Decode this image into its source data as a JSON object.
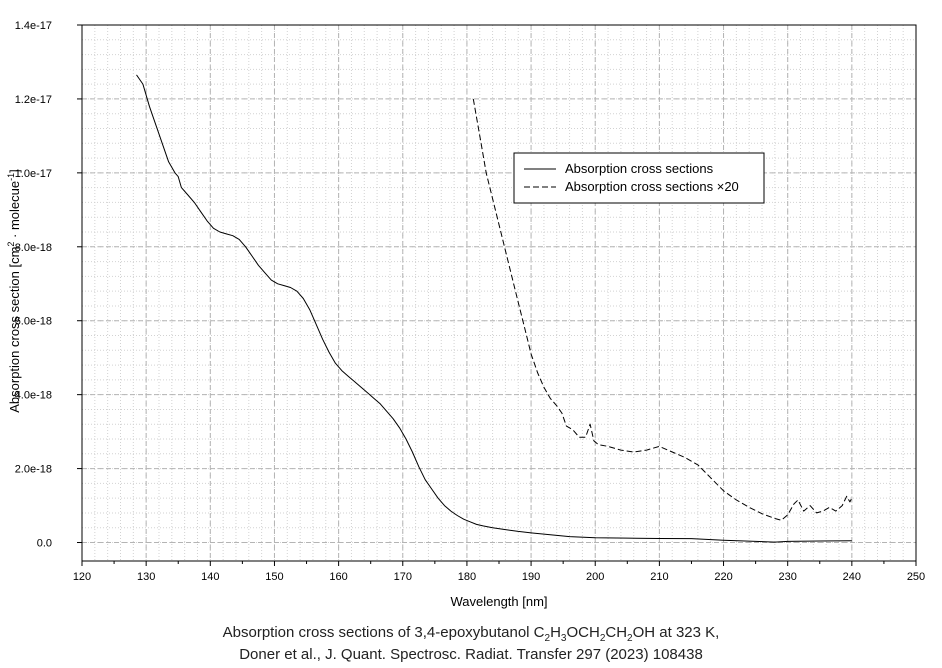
{
  "chart_data": {
    "type": "line",
    "xlabel": "Wavelength [nm]",
    "ylabel_main": "Absorption cross section [cm",
    "ylabel_sup1": "2",
    "ylabel_mid": " · molecue",
    "ylabel_sup2": "-1",
    "ylabel_end": "]",
    "xlim": [
      120,
      250
    ],
    "ylim": [
      -5e-19,
      1.4e-17
    ],
    "x_ticks": [
      120,
      130,
      140,
      150,
      160,
      170,
      180,
      190,
      200,
      210,
      220,
      230,
      240,
      250
    ],
    "y_ticks": [
      0,
      2e-18,
      4e-18,
      6e-18,
      8e-18,
      1e-17,
      1.2e-17,
      1.4e-17
    ],
    "y_tick_labels": [
      "0.0",
      "2.0e-18",
      "4.0e-18",
      "6.0e-18",
      "8.0e-18",
      "1.0e-17",
      "1.2e-17",
      "1.4e-17"
    ],
    "grid": true,
    "legend_position": "upper-right",
    "series": [
      {
        "name": "Absorption cross sections",
        "style": "solid",
        "x": [
          128.5,
          129.5,
          130.5,
          131.5,
          132.5,
          133.5,
          134.5,
          135.0,
          135.5,
          136.5,
          137.5,
          138.5,
          139.5,
          140.5,
          141.5,
          142.5,
          143.5,
          144.5,
          145.5,
          146.5,
          147.5,
          148.5,
          149.5,
          150.5,
          151.5,
          152.5,
          153.5,
          154.5,
          155.5,
          156.5,
          157.5,
          158.5,
          159.5,
          160.5,
          161.5,
          162.5,
          163.5,
          164.5,
          165.5,
          166.5,
          167.5,
          168.5,
          169.5,
          170.5,
          171.5,
          172.5,
          173.5,
          174.5,
          175.5,
          176.5,
          177.5,
          178.5,
          179.5,
          180.5,
          181.5,
          182.5,
          184,
          186,
          188,
          190,
          193,
          196,
          200,
          205,
          210,
          215,
          220,
          225,
          228,
          230,
          235,
          240
        ],
        "y": [
          1.265e-17,
          1.24e-17,
          1.18e-17,
          1.13e-17,
          1.08e-17,
          1.03e-17,
          1e-17,
          9.9e-18,
          9.6e-18,
          9.4e-18,
          9.2e-18,
          8.95e-18,
          8.7e-18,
          8.5e-18,
          8.4e-18,
          8.35e-18,
          8.3e-18,
          8.2e-18,
          8e-18,
          7.75e-18,
          7.5e-18,
          7.3e-18,
          7.1e-18,
          7e-18,
          6.95e-18,
          6.9e-18,
          6.8e-18,
          6.6e-18,
          6.3e-18,
          5.9e-18,
          5.5e-18,
          5.15e-18,
          4.85e-18,
          4.65e-18,
          4.5e-18,
          4.35e-18,
          4.2e-18,
          4.05e-18,
          3.9e-18,
          3.75e-18,
          3.55e-18,
          3.35e-18,
          3.1e-18,
          2.8e-18,
          2.45e-18,
          2.05e-18,
          1.7e-18,
          1.45e-18,
          1.2e-18,
          1e-18,
          8.5e-19,
          7.3e-19,
          6.3e-19,
          5.6e-19,
          4.9e-19,
          4.5e-19,
          4e-19,
          3.5e-19,
          3e-19,
          2.6e-19,
          2.1e-19,
          1.6e-19,
          1.3e-19,
          1.2e-19,
          1.1e-19,
          1.05e-19,
          6e-20,
          3e-20,
          1e-20,
          3e-20,
          4e-20,
          5e-20
        ]
      },
      {
        "name": "Absorption cross sections ×20",
        "style": "dashed",
        "x": [
          181.0,
          182.0,
          183.0,
          184.0,
          185.0,
          186.0,
          187.0,
          188.0,
          189.0,
          190.0,
          191.0,
          192.0,
          193.0,
          194.0,
          194.8,
          195.5,
          196.5,
          197.5,
          198.5,
          199.2,
          199.8,
          200.5,
          202,
          204,
          206,
          208,
          210,
          212,
          214,
          216,
          218,
          220,
          222,
          224,
          226,
          228,
          229,
          230,
          231,
          231.6,
          232.5,
          233.5,
          234.5,
          235.5,
          236.5,
          237.5,
          238.5,
          239.2,
          239.7,
          240.0
        ],
        "y": [
          1.2e-17,
          1.1e-17,
          1e-17,
          9.3e-18,
          8.6e-18,
          7.9e-18,
          7.2e-18,
          6.5e-18,
          5.8e-18,
          5.1e-18,
          4.6e-18,
          4.2e-18,
          3.9e-18,
          3.7e-18,
          3.5e-18,
          3.15e-18,
          3.05e-18,
          2.85e-18,
          2.85e-18,
          3.2e-18,
          2.75e-18,
          2.65e-18,
          2.6e-18,
          2.5e-18,
          2.45e-18,
          2.5e-18,
          2.6e-18,
          2.45e-18,
          2.3e-18,
          2.1e-18,
          1.75e-18,
          1.4e-18,
          1.15e-18,
          9.5e-19,
          7.8e-19,
          6.5e-19,
          6e-19,
          7.5e-19,
          1.05e-18,
          1.15e-18,
          8.5e-19,
          1e-18,
          8e-19,
          8.5e-19,
          9.5e-19,
          8.5e-19,
          1e-18,
          1.25e-18,
          1.1e-18,
          1.2e-18
        ]
      }
    ]
  },
  "caption": {
    "line1_prefix": "Absorption cross sections of 3,4-epoxybutanol C",
    "s1": "2",
    "t1": "H",
    "s2": "3",
    "t2": "OCH",
    "s3": "2",
    "t3": "CH",
    "s4": "2",
    "line1_suffix": "OH at 323 K,",
    "line2": "Doner et al., J. Quant. Spectrosc. Radiat. Transfer 297 (2023) 108438"
  }
}
